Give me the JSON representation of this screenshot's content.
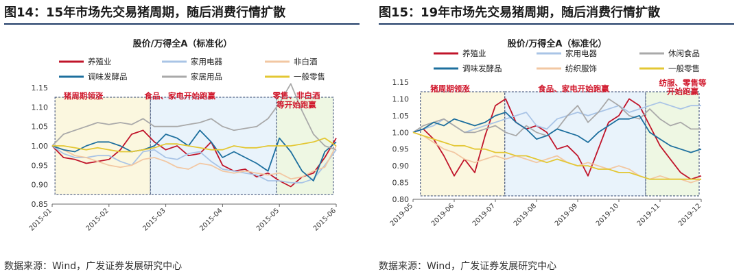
{
  "chart_data": [
    {
      "type": "line",
      "figure_title": "图14：15年市场先交易猪周期，随后消费行情扩散",
      "title": "股价/万得全A（标准化）",
      "source": "数据来源：Wind，广发证券发展研究中心",
      "x_tick_labels": [
        "2015-01",
        "2015-02",
        "2015-03",
        "2015-04",
        "2015-05",
        "2015-06"
      ],
      "y_ticks": [
        "0.85",
        "0.90",
        "0.95",
        "1.00",
        "1.05",
        "1.10",
        "1.15"
      ],
      "ylim": [
        0.85,
        1.15
      ],
      "x_range": [
        0,
        5
      ],
      "legend": [
        {
          "name": "养殖业",
          "color": "#c0142a"
        },
        {
          "name": "家用电器",
          "color": "#a9c4e6"
        },
        {
          "name": "非白酒",
          "color": "#f2c7a2"
        },
        {
          "name": "调味发酵品",
          "color": "#1d6f9e"
        },
        {
          "name": "家居用品",
          "color": "#a9a9a9"
        },
        {
          "name": "一般零售",
          "color": "#e3c733"
        }
      ],
      "annotations": [
        {
          "text": "猪周期领涨",
          "x": 0.55,
          "y": 1.122
        },
        {
          "text": "食品、家电开始跑赢",
          "x": 2.25,
          "y": 1.122
        },
        {
          "text": "零售、非白酒",
          "x": 4.3,
          "y": 1.123
        },
        {
          "text": "等开始跑赢",
          "x": 4.3,
          "y": 1.099
        }
      ],
      "shaded_periods": [
        {
          "x": [
            0.05,
            1.73
          ],
          "color": "#fbf7df"
        },
        {
          "x": [
            1.73,
            3.95
          ],
          "color": "#e9f3fb"
        },
        {
          "x": [
            3.95,
            4.95
          ],
          "color": "#eef7e3"
        }
      ],
      "series": [
        {
          "name": "养殖业",
          "color": "#c0142a",
          "x": [
            0.0,
            0.2,
            0.4,
            0.6,
            0.8,
            1.0,
            1.2,
            1.4,
            1.6,
            1.8,
            2.0,
            2.2,
            2.4,
            2.6,
            2.8,
            3.0,
            3.2,
            3.4,
            3.6,
            3.8,
            4.0,
            4.2,
            4.4,
            4.6,
            4.8,
            5.0
          ],
          "y": [
            1.0,
            0.97,
            0.965,
            0.955,
            0.96,
            0.965,
            0.99,
            1.03,
            1.04,
            1.01,
            0.99,
            1.0,
            0.975,
            0.98,
            1.01,
            0.95,
            0.935,
            0.94,
            0.92,
            0.93,
            0.91,
            0.895,
            0.92,
            0.93,
            0.97,
            1.02
          ]
        },
        {
          "name": "家用电器",
          "color": "#a9c4e6",
          "x": [
            0.0,
            0.2,
            0.4,
            0.6,
            0.8,
            1.0,
            1.2,
            1.4,
            1.6,
            1.8,
            2.0,
            2.2,
            2.4,
            2.6,
            2.8,
            3.0,
            3.2,
            3.4,
            3.6,
            3.8,
            4.0,
            4.2,
            4.4,
            4.6,
            4.8,
            5.0
          ],
          "y": [
            1.0,
            0.98,
            0.97,
            0.97,
            0.975,
            0.975,
            0.96,
            0.95,
            0.985,
            0.99,
            0.97,
            0.965,
            0.98,
            0.985,
            0.96,
            0.94,
            0.935,
            0.93,
            0.925,
            0.91,
            0.91,
            0.905,
            0.905,
            0.915,
            0.95,
            0.99
          ]
        },
        {
          "name": "非白酒",
          "color": "#f2c7a2",
          "x": [
            0.0,
            0.2,
            0.4,
            0.6,
            0.8,
            1.0,
            1.2,
            1.4,
            1.6,
            1.8,
            2.0,
            2.2,
            2.4,
            2.6,
            2.8,
            3.0,
            3.2,
            3.4,
            3.6,
            3.8,
            4.0,
            4.2,
            4.4,
            4.6,
            4.8,
            5.0
          ],
          "y": [
            1.0,
            0.99,
            0.975,
            0.97,
            0.96,
            0.95,
            0.945,
            0.95,
            0.965,
            0.97,
            0.96,
            0.945,
            0.94,
            0.955,
            0.95,
            0.935,
            0.93,
            0.935,
            0.93,
            0.925,
            0.93,
            0.915,
            0.92,
            0.935,
            0.945,
            1.0
          ]
        },
        {
          "name": "调味发酵品",
          "color": "#1d6f9e",
          "x": [
            0.0,
            0.2,
            0.4,
            0.6,
            0.8,
            1.0,
            1.2,
            1.4,
            1.6,
            1.8,
            2.0,
            2.2,
            2.4,
            2.6,
            2.8,
            3.0,
            3.2,
            3.4,
            3.6,
            3.8,
            4.0,
            4.2,
            4.4,
            4.6,
            4.8,
            5.0
          ],
          "y": [
            1.0,
            0.99,
            0.985,
            1.0,
            1.01,
            1.01,
            1.0,
            0.985,
            0.99,
            1.0,
            1.03,
            1.02,
            1.0,
            1.04,
            1.01,
            0.97,
            0.985,
            0.97,
            0.955,
            0.935,
            1.02,
            0.985,
            0.935,
            0.91,
            0.985,
            1.01
          ]
        },
        {
          "name": "家居用品",
          "color": "#a9a9a9",
          "x": [
            0.0,
            0.2,
            0.4,
            0.6,
            0.8,
            1.0,
            1.2,
            1.4,
            1.6,
            1.8,
            2.0,
            2.2,
            2.4,
            2.6,
            2.8,
            3.0,
            3.2,
            3.4,
            3.6,
            3.8,
            4.0,
            4.2,
            4.4,
            4.6,
            4.8,
            5.0
          ],
          "y": [
            1.0,
            1.03,
            1.04,
            1.05,
            1.06,
            1.055,
            1.06,
            1.055,
            1.07,
            1.05,
            1.05,
            1.05,
            1.055,
            1.06,
            1.07,
            1.05,
            1.04,
            1.045,
            1.05,
            1.07,
            1.11,
            1.16,
            1.09,
            1.03,
            1.0,
            0.99
          ]
        },
        {
          "name": "一般零售",
          "color": "#e3c733",
          "x": [
            0.0,
            0.2,
            0.4,
            0.6,
            0.8,
            1.0,
            1.2,
            1.4,
            1.6,
            1.8,
            2.0,
            2.2,
            2.4,
            2.6,
            2.8,
            3.0,
            3.2,
            3.4,
            3.6,
            3.8,
            4.0,
            4.2,
            4.4,
            4.6,
            4.8,
            5.0
          ],
          "y": [
            1.0,
            1.0,
            0.995,
            0.99,
            0.995,
            0.99,
            0.985,
            0.985,
            0.99,
            0.995,
            1.005,
            1.005,
            1.0,
            0.995,
            0.99,
            0.99,
            1.0,
            0.995,
            0.995,
            1.0,
            1.0,
            1.0,
            1.005,
            1.01,
            1.02,
            1.0
          ]
        }
      ]
    },
    {
      "type": "line",
      "figure_title": "图15：19年市场先交易猪周期，随后消费行情扩散",
      "title": "股价/万得全A（标准化）",
      "source": "数据来源：Wind，广发证券发展研究中心",
      "x_tick_labels": [
        "2019-05",
        "2019-06",
        "2019-07",
        "2019-08",
        "2019-09",
        "2019-10",
        "2019-11",
        "2019-12"
      ],
      "y_ticks": [
        "0.80",
        "0.85",
        "0.90",
        "0.95",
        "1.00",
        "1.05",
        "1.10",
        "1.15"
      ],
      "ylim": [
        0.8,
        1.15
      ],
      "x_range": [
        0,
        7
      ],
      "legend": [
        {
          "name": "养殖业",
          "color": "#c0142a"
        },
        {
          "name": "家用电器",
          "color": "#a9c4e6"
        },
        {
          "name": "休闲食品",
          "color": "#a9a9a9"
        },
        {
          "name": "调味发酵品",
          "color": "#1d6f9e"
        },
        {
          "name": "纺织服饰",
          "color": "#f2c7a2"
        },
        {
          "name": "一般零售",
          "color": "#e3c733"
        }
      ],
      "annotations": [
        {
          "text": "猪周期领涨",
          "x": 0.9,
          "y": 1.122
        },
        {
          "text": "食品、家电开始跑赢",
          "x": 3.9,
          "y": 1.122
        },
        {
          "text": "纺服、零售等",
          "x": 6.55,
          "y": 1.14
        },
        {
          "text": "开始跑赢",
          "x": 6.55,
          "y": 1.114
        }
      ],
      "shaded_periods": [
        {
          "x": [
            0.18,
            2.23
          ],
          "color": "#fbf7df"
        },
        {
          "x": [
            2.23,
            5.65
          ],
          "color": "#e9f3fb"
        },
        {
          "x": [
            5.65,
            6.95
          ],
          "color": "#eef7e3"
        }
      ],
      "series": [
        {
          "name": "养殖业",
          "color": "#c0142a",
          "x": [
            0.0,
            0.25,
            0.5,
            0.75,
            1.0,
            1.25,
            1.5,
            1.75,
            2.0,
            2.25,
            2.5,
            2.75,
            3.0,
            3.25,
            3.5,
            3.75,
            4.0,
            4.25,
            4.5,
            4.75,
            5.0,
            5.25,
            5.5,
            5.75,
            6.0,
            6.25,
            6.5,
            6.75,
            7.0
          ],
          "y": [
            1.0,
            1.01,
            0.98,
            0.93,
            0.87,
            0.92,
            0.88,
            0.99,
            1.08,
            1.1,
            1.03,
            1.01,
            1.02,
            1.0,
            0.95,
            0.96,
            0.93,
            0.87,
            0.95,
            1.03,
            1.05,
            1.1,
            1.08,
            1.02,
            0.96,
            0.92,
            0.88,
            0.86,
            0.87
          ]
        },
        {
          "name": "家用电器",
          "color": "#a9c4e6",
          "x": [
            0.0,
            0.25,
            0.5,
            0.75,
            1.0,
            1.25,
            1.5,
            1.75,
            2.0,
            2.25,
            2.5,
            2.75,
            3.0,
            3.25,
            3.5,
            3.75,
            4.0,
            4.25,
            4.5,
            4.75,
            5.0,
            5.25,
            5.5,
            5.75,
            6.0,
            6.25,
            6.5,
            6.75,
            7.0
          ],
          "y": [
            1.0,
            1.01,
            1.02,
            1.04,
            1.02,
            1.0,
            1.01,
            1.02,
            1.03,
            1.04,
            1.05,
            1.06,
            1.02,
            1.01,
            1.04,
            1.05,
            1.06,
            1.05,
            1.06,
            1.07,
            1.08,
            1.06,
            1.07,
            1.08,
            1.09,
            1.08,
            1.07,
            1.08,
            1.08
          ]
        },
        {
          "name": "休闲食品",
          "color": "#a9a9a9",
          "x": [
            0.0,
            0.25,
            0.5,
            0.75,
            1.0,
            1.25,
            1.5,
            1.75,
            2.0,
            2.25,
            2.5,
            2.75,
            3.0,
            3.25,
            3.5,
            3.75,
            4.0,
            4.25,
            4.5,
            4.75,
            5.0,
            5.25,
            5.5,
            5.75,
            6.0,
            6.25,
            6.5,
            6.75,
            7.0
          ],
          "y": [
            1.0,
            1.02,
            1.03,
            1.04,
            1.02,
            1.0,
            1.0,
            1.01,
            1.02,
            1.0,
            0.99,
            1.02,
            1.0,
            0.99,
            1.01,
            1.05,
            1.08,
            1.03,
            1.06,
            1.1,
            1.08,
            1.05,
            1.04,
            1.07,
            1.04,
            1.02,
            1.03,
            1.01,
            1.01
          ]
        },
        {
          "name": "调味发酵品",
          "color": "#1d6f9e",
          "x": [
            0.0,
            0.25,
            0.5,
            0.75,
            1.0,
            1.25,
            1.5,
            1.75,
            2.0,
            2.25,
            2.5,
            2.75,
            3.0,
            3.25,
            3.5,
            3.75,
            4.0,
            4.25,
            4.5,
            4.75,
            5.0,
            5.25,
            5.5,
            5.75,
            6.0,
            6.25,
            6.5,
            6.75,
            7.0
          ],
          "y": [
            1.0,
            1.01,
            1.03,
            1.02,
            1.04,
            1.03,
            1.02,
            1.03,
            1.05,
            1.06,
            1.03,
            1.01,
            0.98,
            0.99,
            1.01,
            1.0,
            0.99,
            0.97,
            1.0,
            1.02,
            1.04,
            1.04,
            1.05,
            1.0,
            0.98,
            0.96,
            0.95,
            0.94,
            0.95
          ]
        },
        {
          "name": "纺织服饰",
          "color": "#f2c7a2",
          "x": [
            0.0,
            0.25,
            0.5,
            0.75,
            1.0,
            1.25,
            1.5,
            1.75,
            2.0,
            2.25,
            2.5,
            2.75,
            3.0,
            3.25,
            3.5,
            3.75,
            4.0,
            4.25,
            4.5,
            4.75,
            5.0,
            5.25,
            5.5,
            5.75,
            6.0,
            6.25,
            6.5,
            6.75,
            7.0
          ],
          "y": [
            1.0,
            0.99,
            0.97,
            0.95,
            0.94,
            0.92,
            0.91,
            0.92,
            0.93,
            0.92,
            0.93,
            0.92,
            0.91,
            0.92,
            0.93,
            0.91,
            0.9,
            0.91,
            0.9,
            0.89,
            0.9,
            0.89,
            0.87,
            0.86,
            0.87,
            0.86,
            0.86,
            0.85,
            0.86
          ]
        },
        {
          "name": "一般零售",
          "color": "#e3c733",
          "x": [
            0.0,
            0.25,
            0.5,
            0.75,
            1.0,
            1.25,
            1.5,
            1.75,
            2.0,
            2.25,
            2.5,
            2.75,
            3.0,
            3.25,
            3.5,
            3.75,
            4.0,
            4.25,
            4.5,
            4.75,
            5.0,
            5.25,
            5.5,
            5.75,
            6.0,
            6.25,
            6.5,
            6.75,
            7.0
          ],
          "y": [
            1.0,
            0.99,
            0.98,
            0.97,
            0.96,
            0.96,
            0.95,
            0.95,
            0.94,
            0.94,
            0.93,
            0.93,
            0.92,
            0.91,
            0.92,
            0.91,
            0.9,
            0.9,
            0.89,
            0.89,
            0.88,
            0.88,
            0.87,
            0.86,
            0.86,
            0.86,
            0.86,
            0.86,
            0.86
          ]
        }
      ]
    }
  ]
}
